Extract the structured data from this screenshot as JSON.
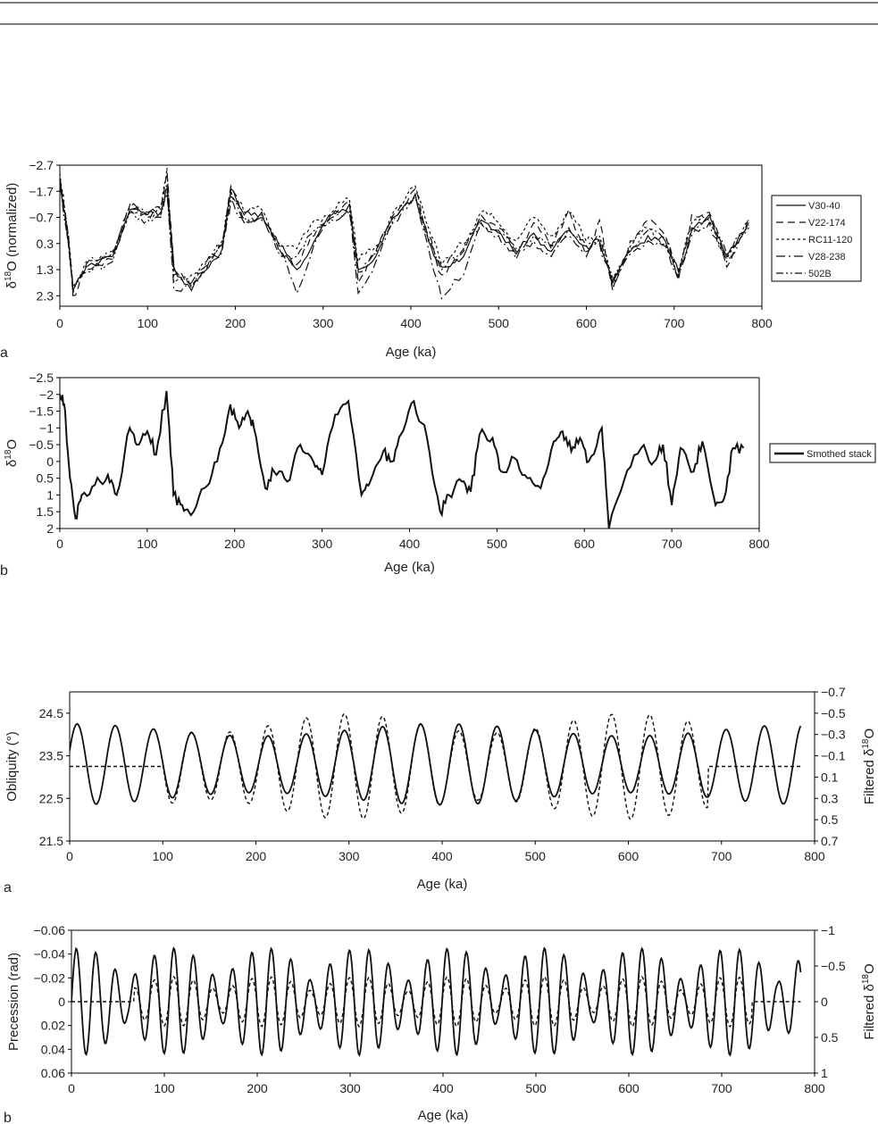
{
  "chart_data": [
    {
      "type": "line",
      "panel_label": "a",
      "xlabel": "Age (ka)",
      "ylabel": "δ18O (normalized)",
      "xlim": [
        0,
        800
      ],
      "ylim": [
        2.7,
        -2.7
      ],
      "y_inverted": true,
      "xticks": [
        "0",
        "100",
        "200",
        "300",
        "400",
        "500",
        "600",
        "700",
        "800"
      ],
      "yticks": [
        "−2.7",
        "−1.7",
        "−0.7",
        "0.3",
        "1.3",
        "2.3"
      ],
      "grid": false,
      "legend": "right",
      "x": [
        0,
        10,
        15,
        30,
        60,
        80,
        100,
        115,
        122,
        130,
        150,
        170,
        185,
        195,
        210,
        230,
        250,
        270,
        290,
        310,
        330,
        340,
        360,
        380,
        405,
        420,
        435,
        460,
        480,
        500,
        520,
        540,
        560,
        580,
        600,
        615,
        630,
        650,
        670,
        690,
        705,
        720,
        740,
        760,
        785
      ],
      "series": [
        {
          "name": "V30-40",
          "dash": "solid",
          "values": [
            -2.0,
            0.2,
            2.1,
            1.2,
            0.8,
            -1.0,
            -0.8,
            -0.9,
            -1.8,
            1.2,
            2.1,
            1.2,
            0.5,
            -1.8,
            -0.8,
            -0.9,
            0.4,
            1.3,
            0.2,
            -0.8,
            -1.2,
            1.3,
            0.8,
            -0.7,
            -1.6,
            0.2,
            1.2,
            0.8,
            -0.6,
            -0.2,
            0.7,
            -0.1,
            0.6,
            -0.2,
            0.4,
            0.2,
            1.8,
            0.6,
            0.0,
            0.2,
            1.4,
            -0.2,
            -0.8,
            0.8,
            -0.5
          ]
        },
        {
          "name": "V22-174",
          "dash": "8,5",
          "values": [
            -2.2,
            0.0,
            2.3,
            1.3,
            0.9,
            -1.2,
            -0.8,
            -1.0,
            -2.4,
            1.3,
            2.0,
            1.0,
            0.3,
            -1.9,
            -0.6,
            -0.7,
            0.6,
            1.1,
            0.0,
            -0.9,
            -1.3,
            1.8,
            0.6,
            -0.8,
            -1.8,
            0.0,
            1.5,
            0.6,
            -0.8,
            -0.3,
            0.6,
            -0.5,
            0.4,
            -1.0,
            0.8,
            -0.6,
            2.1,
            0.2,
            -0.6,
            0.0,
            1.7,
            -0.8,
            -0.9,
            1.2,
            -0.7
          ]
        },
        {
          "name": "RC11-120",
          "dash": "3,3",
          "values": [
            -2.4,
            0.1,
            2.0,
            1.0,
            0.7,
            -1.0,
            -0.7,
            -1.1,
            -2.6,
            1.8,
            1.5,
            0.9,
            0.2,
            -1.7,
            -0.9,
            -1.0,
            0.3,
            0.5,
            -0.6,
            -0.9,
            -1.4,
            1.0,
            0.4,
            -0.9,
            -1.9,
            -0.3,
            1.1,
            0.3,
            -0.9,
            -0.5,
            0.2,
            -0.7,
            0.0,
            -0.9,
            0.2,
            0.1,
            1.6,
            0.4,
            -0.3,
            0.3,
            1.3,
            -0.5,
            -0.6,
            0.9,
            -0.6
          ]
        },
        {
          "name": "V28-238",
          "dash": "10,4,2,4",
          "values": [
            -2.1,
            0.3,
            2.2,
            1.1,
            0.6,
            -1.1,
            -0.9,
            -0.8,
            -2.0,
            2.1,
            1.8,
            1.1,
            0.6,
            -1.4,
            -0.5,
            -0.8,
            0.5,
            2.2,
            0.3,
            -0.7,
            -1.0,
            2.2,
            1.0,
            -0.5,
            -1.5,
            0.5,
            2.4,
            1.5,
            -0.4,
            0.0,
            0.9,
            0.2,
            0.8,
            0.0,
            0.6,
            0.3,
            2.0,
            0.7,
            0.2,
            0.4,
            1.6,
            0.0,
            -0.5,
            1.0,
            -0.3
          ]
        },
        {
          "name": "502B",
          "dash": "8,3,2,3,2,3",
          "values": [
            -1.9,
            0.4,
            1.9,
            1.4,
            1.0,
            -0.9,
            -0.6,
            -0.7,
            -1.6,
            1.5,
            1.9,
            0.8,
            0.4,
            -1.5,
            -0.7,
            -0.6,
            0.7,
            0.8,
            -0.2,
            -0.6,
            -0.9,
            1.4,
            0.7,
            -0.6,
            -1.4,
            0.1,
            1.3,
            0.5,
            -0.5,
            -0.1,
            0.5,
            0.0,
            0.5,
            -0.3,
            0.4,
            0.0,
            1.7,
            0.5,
            -0.2,
            0.1,
            1.5,
            -0.3,
            -0.7,
            0.7,
            -0.4
          ]
        }
      ]
    },
    {
      "type": "line",
      "panel_label": "b",
      "xlabel": "Age (ka)",
      "ylabel": "δ18O",
      "xlim": [
        0,
        800
      ],
      "ylim": [
        2,
        -2.5
      ],
      "y_inverted": true,
      "xticks": [
        "0",
        "100",
        "200",
        "300",
        "400",
        "500",
        "600",
        "700",
        "800"
      ],
      "yticks": [
        "−2.5",
        "−2",
        "−1.5",
        "−1",
        "−0.5",
        "0",
        "0.5",
        "1",
        "1.5",
        "2"
      ],
      "grid": false,
      "legend": "right",
      "x": [
        0,
        5,
        10,
        18,
        25,
        40,
        55,
        65,
        80,
        88,
        100,
        110,
        122,
        130,
        140,
        150,
        165,
        180,
        195,
        205,
        215,
        222,
        235,
        245,
        260,
        275,
        290,
        300,
        315,
        330,
        345,
        355,
        370,
        380,
        390,
        405,
        420,
        435,
        445,
        460,
        470,
        480,
        495,
        505,
        520,
        535,
        550,
        565,
        575,
        585,
        595,
        605,
        620,
        628,
        645,
        665,
        680,
        690,
        700,
        710,
        725,
        735,
        750,
        760,
        770,
        782
      ],
      "series": [
        {
          "name": "Smothed stack",
          "dash": "solid",
          "values": [
            -2.0,
            -1.7,
            0.0,
            1.7,
            1.0,
            0.7,
            0.4,
            1.0,
            -1.0,
            -0.5,
            -0.9,
            -0.2,
            -2.1,
            1.0,
            1.3,
            1.6,
            0.8,
            0.0,
            -1.7,
            -1.0,
            -1.5,
            -1.0,
            0.8,
            0.3,
            0.6,
            -0.5,
            0.0,
            0.4,
            -1.4,
            -1.8,
            1.0,
            0.6,
            -0.3,
            0.0,
            -0.8,
            -1.8,
            -0.7,
            1.5,
            1.0,
            0.6,
            0.9,
            -0.8,
            -0.7,
            0.3,
            -0.1,
            0.5,
            0.8,
            -0.6,
            -0.9,
            -0.3,
            -0.7,
            0.0,
            -1.0,
            2.0,
            0.6,
            -0.4,
            0.0,
            -0.5,
            1.3,
            -0.4,
            0.3,
            -0.6,
            1.3,
            1.1,
            -0.4,
            -0.4
          ]
        }
      ]
    },
    {
      "type": "line",
      "panel_label": "a",
      "xlabel": "Age (ka)",
      "ylabel": "Obliquity (°)",
      "ylabel_right": "Filtered δ18O",
      "xlim": [
        0,
        800
      ],
      "ylim": [
        21.5,
        25.0
      ],
      "ylim_right": [
        0.7,
        -0.7
      ],
      "xticks": [
        "0",
        "100",
        "200",
        "300",
        "400",
        "500",
        "600",
        "700",
        "800"
      ],
      "yticks": [
        "21.5",
        "22.5",
        "23.5",
        "24.5"
      ],
      "yticks_right": [
        "−0.7",
        "−0.5",
        "−0.3",
        "−0.1",
        "0.1",
        "0.3",
        "0.5",
        "0.7"
      ],
      "grid": false,
      "legend": "none",
      "series": [
        {
          "name": "",
          "dash": "solid",
          "kind": "obliquity",
          "period": 41,
          "mean": 23.3,
          "amplitude": 0.95,
          "t0": 8,
          "xrange": [
            0,
            785
          ]
        },
        {
          "name": "",
          "dash": "4,3",
          "kind": "filtered",
          "period": 41,
          "mean": 0.0,
          "amplitude": 0.45,
          "t0": 8,
          "xrange": [
            0,
            785
          ],
          "flat_before": 100,
          "flat_after": 685
        }
      ]
    },
    {
      "type": "line",
      "panel_label": "b",
      "xlabel": "Age (ka)",
      "ylabel": "Precession (rad)",
      "ylabel_right": "Filtered δ18O",
      "xlim": [
        0,
        800
      ],
      "ylim": [
        0.06,
        -0.06
      ],
      "ylim_right": [
        1,
        -1
      ],
      "xticks": [
        "0",
        "100",
        "200",
        "300",
        "400",
        "500",
        "600",
        "700",
        "800"
      ],
      "yticks": [
        "−0.06",
        "−0.04",
        "−0.02",
        "0",
        "0.02",
        "0.04",
        "0.06"
      ],
      "yticks_right": [
        "−1",
        "−0.5",
        "0",
        "0.5",
        "1"
      ],
      "grid": false,
      "legend": "none",
      "series": [
        {
          "name": "",
          "dash": "solid",
          "kind": "precession",
          "period": 21,
          "amplitude": 0.045,
          "modulation_period": 100,
          "xrange": [
            0,
            785
          ]
        },
        {
          "name": "",
          "dash": "4,3",
          "kind": "filtered",
          "period": 21,
          "amplitude": 0.35,
          "modulation_period": 100,
          "xrange": [
            0,
            785
          ],
          "flat_before": 68,
          "flat_after": 732
        }
      ]
    }
  ]
}
